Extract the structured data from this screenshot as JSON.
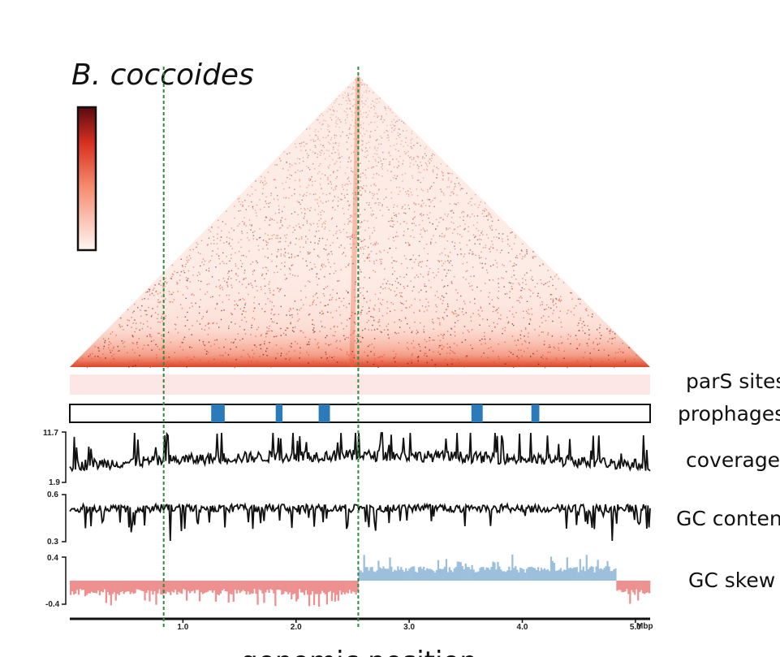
{
  "title": "B. coccoides",
  "xlabel": "genomic position",
  "colors": {
    "heatmap_low": "#fde9e5",
    "heatmap_mid": "#ee5a3c",
    "heatmap_high": "#5a0a10",
    "pars_band": "#fde6e6",
    "prophage": "#2b7bba",
    "trace": "#111111",
    "skew_positive": "#9cc0dc",
    "skew_negative": "#ee9090",
    "marker_line": "#2e8b3e"
  },
  "tracks": {
    "pars": "parS sites",
    "prophages": "prophages",
    "coverage": "coverage",
    "gc_content": "GC content",
    "gc_skew": "GC skew"
  },
  "chart_data": {
    "type": "heatmap",
    "x_unit": "Mbp",
    "xlim": [
      0.0,
      5.13
    ],
    "x_ticks": [
      "1.0",
      "2.0",
      "3.0",
      "4.0",
      "5.0"
    ],
    "x_tick_values": [
      1.0,
      2.0,
      3.0,
      4.0,
      5.0
    ],
    "x_unit_label": "Mbp",
    "markers_mbp": [
      0.83,
      2.55
    ],
    "heatmap": {
      "description_shown": "triangular contact map with enriched diagonal and secondary diagonal converging at apex",
      "apex_mbp": 2.55
    },
    "prophages_mbp": [
      [
        1.25,
        1.37
      ],
      [
        1.82,
        1.88
      ],
      [
        2.2,
        2.3
      ],
      [
        3.55,
        3.65
      ],
      [
        4.08,
        4.15
      ]
    ],
    "coverage": {
      "ylim": [
        1.9,
        11.7
      ],
      "y_ticks": [
        "11.7",
        "1.9"
      ]
    },
    "gc_content": {
      "ylim": [
        0.3,
        0.6
      ],
      "y_ticks": [
        "0.6",
        "0.3"
      ]
    },
    "gc_skew": {
      "ylim": [
        -0.4,
        0.4
      ],
      "y_ticks": [
        "0.4",
        "-0.4"
      ],
      "sign_switch_mbp": [
        2.55,
        4.83
      ]
    }
  }
}
